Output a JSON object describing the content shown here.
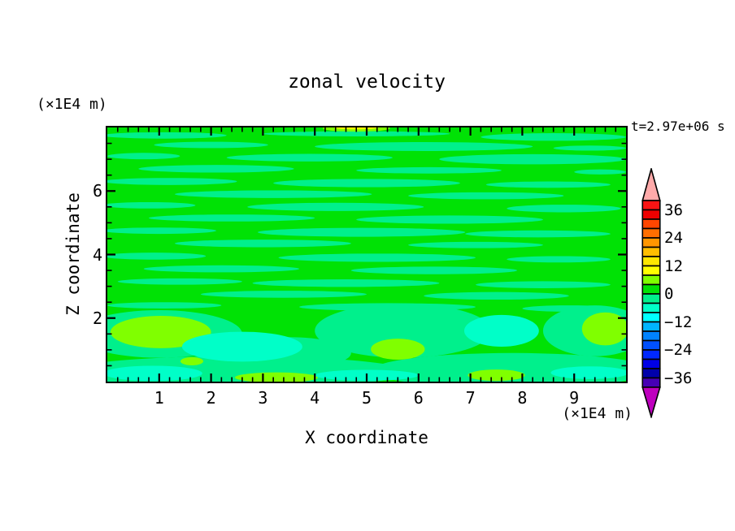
{
  "figure": {
    "title": "zonal velocity",
    "time_label": "t=2.97e+06 s",
    "left_axis_unit": "(×1E4 m)",
    "bottom_axis_unit": "(×1E4 m)",
    "x_axis_label": "X coordinate",
    "z_axis_label": "Z coordinate"
  },
  "chart_data": {
    "type": "heatmap",
    "subtype": "filled-contour",
    "title": "zonal velocity",
    "xlabel": "X coordinate",
    "ylabel": "Z coordinate",
    "x_unit": "×1E4 m",
    "z_unit": "×1E4 m",
    "time": "t=2.97e+06 s",
    "x_range": [
      0,
      10
    ],
    "z_range": [
      0,
      8
    ],
    "x_major_ticks": [
      1,
      2,
      3,
      4,
      5,
      6,
      7,
      8,
      9
    ],
    "x_minor_step": 0.2,
    "z_major_ticks": [
      2,
      4,
      6
    ],
    "z_minor_step": 0.5,
    "grid": false,
    "legend_position": "right-colorbar",
    "colorbar": {
      "min": -40,
      "max": 40,
      "step": 4,
      "labels": [
        "36",
        "24",
        "12",
        "0",
        "−12",
        "−24",
        "−36"
      ],
      "label_values": [
        36,
        24,
        12,
        0,
        -12,
        -24,
        -36
      ],
      "over_color": "#FFAAAA",
      "under_color": "#BE00BE",
      "segment_colors_top_to_bottom": [
        "#FA1414",
        "#EE0000",
        "#FF4600",
        "#FF6E00",
        "#FF9600",
        "#FFBE00",
        "#FFE600",
        "#FFFF00",
        "#80FF00",
        "#00E205",
        "#00F08C",
        "#00FFC8",
        "#00FFFF",
        "#00B4FF",
        "#0082FF",
        "#0050FF",
        "#0028FF",
        "#0000E6",
        "#0000AA",
        "#4600B4"
      ]
    },
    "fill_levels": {
      "8..12": "#FFFF00",
      "4..8": "#80FF00",
      "0..4": "#00E205",
      "-4..0": "#00F08C",
      "-8..-4": "#00FFC8"
    },
    "background_level": "0..4",
    "field_notes": "Velocity field is mostly between -8 and +8: alternating horizontal streaks of 0..4 (green) and -4..0 (spring green) fill the domain above z=2; below z=2 there are broader -4..0 bands with -8..-4 (turquoise) pools near x=2.6, 7.6 and the bottom-left/bottom-right corners, 4..8 (chartreuse) patches near x=1, 5.6 and the right edge, and a thin 8..12 (yellow) sliver at the top boundary near x=4.8.",
    "streaks_level": "-4..0",
    "streaks": [
      [
        1.1,
        7.75,
        1.2,
        0.1
      ],
      [
        4.8,
        7.8,
        1.8,
        0.08
      ],
      [
        8.6,
        7.7,
        1.4,
        0.12
      ],
      [
        2.0,
        7.45,
        1.1,
        0.1
      ],
      [
        6.1,
        7.4,
        2.1,
        0.14
      ],
      [
        9.3,
        7.35,
        0.7,
        0.08
      ],
      [
        0.7,
        7.1,
        0.7,
        0.1
      ],
      [
        3.9,
        7.05,
        1.6,
        0.12
      ],
      [
        8.2,
        7.0,
        1.8,
        0.16
      ],
      [
        2.1,
        6.7,
        1.5,
        0.12
      ],
      [
        6.2,
        6.65,
        1.4,
        0.1
      ],
      [
        9.5,
        6.6,
        0.5,
        0.08
      ],
      [
        1.2,
        6.3,
        1.3,
        0.11
      ],
      [
        5.0,
        6.25,
        1.8,
        0.13
      ],
      [
        8.5,
        6.2,
        1.2,
        0.1
      ],
      [
        3.2,
        5.9,
        1.9,
        0.12
      ],
      [
        7.3,
        5.85,
        1.5,
        0.11
      ],
      [
        0.8,
        5.55,
        0.9,
        0.1
      ],
      [
        4.4,
        5.5,
        1.7,
        0.13
      ],
      [
        8.8,
        5.45,
        1.1,
        0.12
      ],
      [
        2.4,
        5.15,
        1.6,
        0.11
      ],
      [
        6.6,
        5.1,
        1.8,
        0.13
      ],
      [
        1.0,
        4.75,
        1.1,
        0.1
      ],
      [
        4.9,
        4.7,
        2.0,
        0.14
      ],
      [
        8.3,
        4.65,
        1.4,
        0.11
      ],
      [
        3.0,
        4.35,
        1.7,
        0.12
      ],
      [
        7.1,
        4.3,
        1.3,
        0.1
      ],
      [
        0.9,
        3.95,
        1.0,
        0.11
      ],
      [
        5.2,
        3.9,
        1.9,
        0.13
      ],
      [
        8.7,
        3.85,
        1.0,
        0.1
      ],
      [
        2.2,
        3.55,
        1.5,
        0.11
      ],
      [
        6.3,
        3.5,
        1.6,
        0.12
      ],
      [
        1.4,
        3.15,
        1.2,
        0.1
      ],
      [
        4.6,
        3.1,
        1.8,
        0.12
      ],
      [
        8.4,
        3.05,
        1.3,
        0.11
      ],
      [
        3.4,
        2.75,
        1.6,
        0.11
      ],
      [
        7.5,
        2.7,
        1.4,
        0.12
      ],
      [
        1.1,
        2.4,
        1.1,
        0.1
      ],
      [
        5.4,
        2.35,
        1.7,
        0.12
      ],
      [
        8.9,
        2.3,
        0.9,
        0.1
      ]
    ],
    "features": [
      {
        "x": 2.5,
        "z": 0.3,
        "rx": 3.3,
        "rz": 0.5,
        "level": "-4..0"
      },
      {
        "x": 7.8,
        "z": 0.35,
        "rx": 2.7,
        "rz": 0.55,
        "level": "-4..0"
      },
      {
        "x": 1.0,
        "z": 1.5,
        "rx": 1.6,
        "rz": 0.75,
        "level": "-4..0"
      },
      {
        "x": 5.7,
        "z": 1.6,
        "rx": 1.7,
        "rz": 0.85,
        "level": "-4..0"
      },
      {
        "x": 9.4,
        "z": 1.6,
        "rx": 1.0,
        "rz": 0.8,
        "level": "-4..0"
      },
      {
        "x": 3.5,
        "z": 0.9,
        "rx": 1.2,
        "rz": 0.5,
        "level": "-4..0"
      },
      {
        "x": 1.03,
        "z": 1.56,
        "rx": 0.97,
        "rz": 0.51,
        "level": "4..8"
      },
      {
        "x": 5.6,
        "z": 1.02,
        "rx": 0.52,
        "rz": 0.33,
        "level": "4..8"
      },
      {
        "x": 9.6,
        "z": 1.66,
        "rx": 0.45,
        "rz": 0.52,
        "level": "4..8"
      },
      {
        "x": 2.6,
        "z": 1.1,
        "rx": 1.16,
        "rz": 0.47,
        "level": "-8..-4"
      },
      {
        "x": 7.6,
        "z": 1.6,
        "rx": 0.72,
        "rz": 0.5,
        "level": "-8..-4"
      },
      {
        "x": 1.63,
        "z": 0.64,
        "rx": 0.22,
        "rz": 0.13,
        "level": "4..8"
      },
      {
        "x": 7.5,
        "z": 0.2,
        "rx": 0.55,
        "rz": 0.18,
        "level": "4..8"
      },
      {
        "x": 3.26,
        "z": 0.13,
        "rx": 0.8,
        "rz": 0.16,
        "level": "4..8"
      },
      {
        "x": 0.88,
        "z": 0.26,
        "rx": 0.95,
        "rz": 0.24,
        "level": "-8..-4"
      },
      {
        "x": 5.0,
        "z": 0.2,
        "rx": 1.0,
        "rz": 0.17,
        "level": "-8..-4"
      },
      {
        "x": 9.3,
        "z": 0.28,
        "rx": 0.75,
        "rz": 0.2,
        "level": "-8..-4"
      },
      {
        "x": 4.8,
        "z": 7.97,
        "rx": 0.65,
        "rz": 0.1,
        "level": "4..8"
      },
      {
        "x": 4.8,
        "z": 8.0,
        "rx": 0.43,
        "rz": 0.06,
        "level": "8..12"
      }
    ]
  }
}
